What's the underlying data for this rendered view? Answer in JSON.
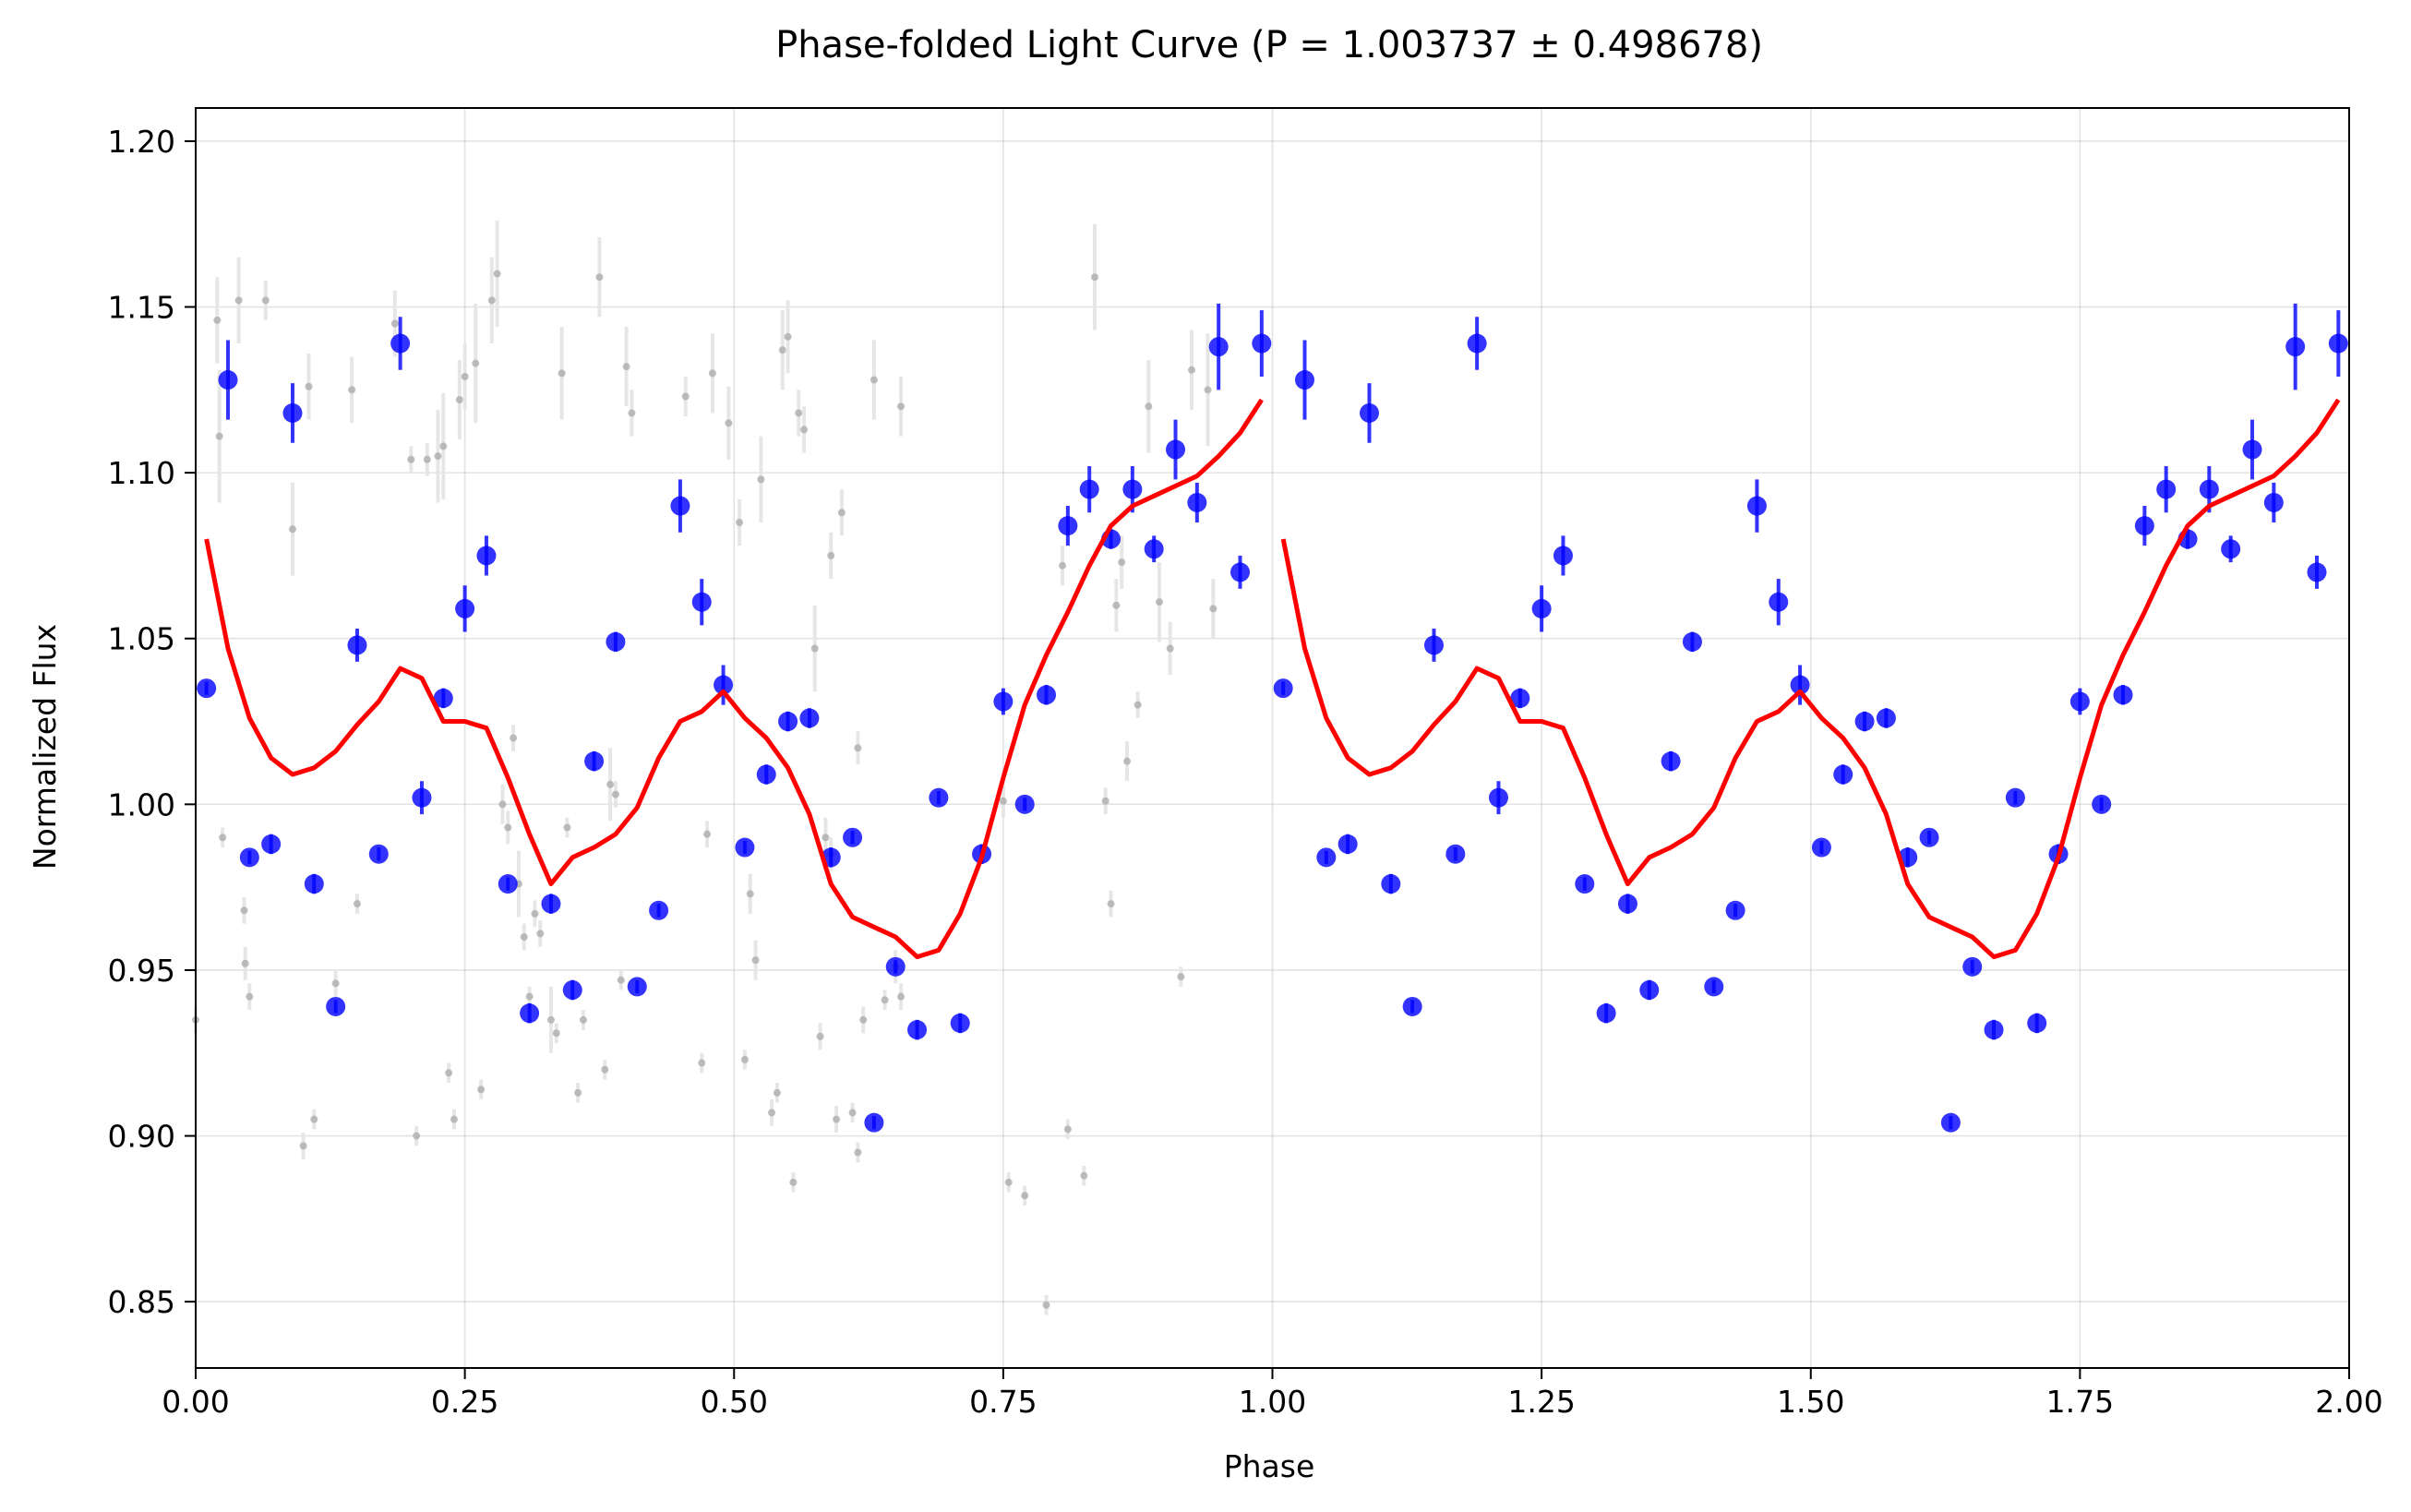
{
  "chart_data": {
    "type": "scatter",
    "title": "Phase-folded Light Curve (P = 1.003737 ± 0.498678)",
    "xlabel": "Phase",
    "ylabel": "Normalized Flux",
    "xlim": [
      0.0,
      2.0
    ],
    "ylim": [
      0.83,
      1.21
    ],
    "xticks": [
      0.0,
      0.25,
      0.5,
      0.75,
      1.0,
      1.25,
      1.5,
      1.75,
      2.0
    ],
    "xtick_labels": [
      "0.00",
      "0.25",
      "0.50",
      "0.75",
      "1.00",
      "1.25",
      "1.50",
      "1.75",
      "2.00"
    ],
    "yticks": [
      0.85,
      0.9,
      0.95,
      1.0,
      1.05,
      1.1,
      1.15,
      1.2
    ],
    "ytick_labels": [
      "0.85",
      "0.90",
      "0.95",
      "1.00",
      "1.05",
      "1.10",
      "1.15",
      "1.20"
    ],
    "grid": true,
    "legend": "none",
    "colors": {
      "raw": "#a8a8a8",
      "raw_err": "#e6e6e6",
      "binned": "#0000ff",
      "model": "#ff0000"
    },
    "series": [
      {
        "kind": "raw",
        "x": [
          0.0,
          0.02,
          0.022,
          0.025,
          0.04,
          0.045,
          0.046,
          0.05,
          0.065,
          0.09,
          0.1,
          0.105,
          0.11,
          0.13,
          0.145,
          0.15,
          0.185,
          0.2,
          0.205,
          0.215,
          0.225,
          0.23,
          0.235,
          0.24,
          0.245,
          0.25,
          0.26,
          0.265,
          0.275,
          0.28,
          0.285,
          0.29,
          0.295,
          0.3,
          0.305,
          0.31,
          0.315,
          0.32,
          0.33,
          0.335,
          0.34,
          0.345,
          0.355,
          0.36,
          0.375,
          0.38,
          0.385,
          0.39,
          0.395,
          0.4,
          0.405,
          0.455,
          0.47,
          0.475,
          0.48,
          0.495,
          0.505,
          0.51,
          0.515,
          0.52,
          0.525,
          0.535,
          0.54,
          0.545,
          0.55,
          0.555,
          0.56,
          0.565,
          0.575,
          0.58,
          0.585,
          0.59,
          0.59,
          0.595,
          0.6,
          0.61,
          0.615,
          0.615,
          0.62,
          0.63,
          0.64,
          0.65,
          0.655,
          0.655,
          0.75,
          0.755,
          0.77,
          0.79,
          0.805,
          0.81,
          0.825,
          0.835,
          0.845,
          0.85,
          0.855,
          0.86,
          0.865,
          0.875,
          0.885,
          0.895,
          0.905,
          0.915,
          0.925,
          0.94,
          0.945
        ],
        "y": [
          0.935,
          1.146,
          1.111,
          0.99,
          1.152,
          0.968,
          0.952,
          0.942,
          1.152,
          1.083,
          0.897,
          1.126,
          0.905,
          0.946,
          1.125,
          0.97,
          1.145,
          1.104,
          0.9,
          1.104,
          1.105,
          1.108,
          0.919,
          0.905,
          1.122,
          1.129,
          1.133,
          0.914,
          1.152,
          1.16,
          1.0,
          0.993,
          1.02,
          0.976,
          0.96,
          0.942,
          0.967,
          0.961,
          0.935,
          0.931,
          1.13,
          0.993,
          0.913,
          0.935,
          1.159,
          0.92,
          1.006,
          1.003,
          0.947,
          1.132,
          1.118,
          1.123,
          0.922,
          0.991,
          1.13,
          1.115,
          1.085,
          0.923,
          0.973,
          0.953,
          1.098,
          0.907,
          0.913,
          1.137,
          1.141,
          0.886,
          1.118,
          1.113,
          1.047,
          0.93,
          0.99,
          0.985,
          1.075,
          0.905,
          1.088,
          0.907,
          0.895,
          1.017,
          0.935,
          1.128,
          0.941,
          0.951,
          0.942,
          1.12,
          1.001,
          0.886,
          0.882,
          0.849,
          1.072,
          0.902,
          0.888,
          1.159,
          1.001,
          0.97,
          1.06,
          1.073,
          1.013,
          1.03,
          1.12,
          1.061,
          1.047,
          0.948,
          1.131,
          1.125,
          1.059
        ],
        "yerr": [
          0.004,
          0.013,
          0.02,
          0.003,
          0.013,
          0.004,
          0.005,
          0.004,
          0.006,
          0.014,
          0.004,
          0.01,
          0.003,
          0.004,
          0.01,
          0.003,
          0.01,
          0.004,
          0.003,
          0.005,
          0.014,
          0.016,
          0.003,
          0.003,
          0.012,
          0.01,
          0.018,
          0.003,
          0.013,
          0.016,
          0.006,
          0.005,
          0.004,
          0.01,
          0.004,
          0.003,
          0.004,
          0.004,
          0.01,
          0.003,
          0.014,
          0.003,
          0.003,
          0.003,
          0.012,
          0.003,
          0.011,
          0.004,
          0.003,
          0.012,
          0.007,
          0.006,
          0.003,
          0.004,
          0.012,
          0.011,
          0.007,
          0.003,
          0.006,
          0.006,
          0.013,
          0.004,
          0.003,
          0.012,
          0.011,
          0.003,
          0.007,
          0.007,
          0.013,
          0.004,
          0.006,
          0.005,
          0.007,
          0.004,
          0.007,
          0.003,
          0.003,
          0.005,
          0.004,
          0.012,
          0.003,
          0.005,
          0.004,
          0.009,
          0.005,
          0.003,
          0.003,
          0.003,
          0.006,
          0.003,
          0.003,
          0.016,
          0.004,
          0.004,
          0.008,
          0.008,
          0.006,
          0.004,
          0.014,
          0.012,
          0.008,
          0.003,
          0.012,
          0.017,
          0.009
        ]
      },
      {
        "kind": "binned",
        "x": [
          0.01,
          0.03,
          0.05,
          0.07,
          0.09,
          0.11,
          0.13,
          0.15,
          0.17,
          0.19,
          0.21,
          0.23,
          0.25,
          0.27,
          0.29,
          0.31,
          0.33,
          0.35,
          0.37,
          0.39,
          0.41,
          0.43,
          0.45,
          0.47,
          0.49,
          0.51,
          0.53,
          0.55,
          0.57,
          0.59,
          0.61,
          0.63,
          0.65,
          0.67,
          0.69,
          0.71,
          0.73,
          0.75,
          0.77,
          0.79,
          0.81,
          0.83,
          0.85,
          0.87,
          0.89,
          0.91,
          0.93,
          0.95,
          0.97,
          0.99
        ],
        "y": [
          1.035,
          1.128,
          0.984,
          0.988,
          1.118,
          0.976,
          0.939,
          1.048,
          0.985,
          1.139,
          1.002,
          1.032,
          1.059,
          1.075,
          0.976,
          0.937,
          0.97,
          0.944,
          1.013,
          1.049,
          0.945,
          0.968,
          1.09,
          1.061,
          1.036,
          0.987,
          1.009,
          1.025,
          1.026,
          0.984,
          0.99,
          0.904,
          0.951,
          0.932,
          1.002,
          0.934,
          0.985,
          1.031,
          1.0,
          1.033,
          1.084,
          1.095,
          1.08,
          1.095,
          1.077,
          1.107,
          1.091,
          1.138,
          1.07,
          1.139
        ],
        "yerr": [
          0.002,
          0.012,
          0.002,
          0.003,
          0.009,
          0.003,
          0.002,
          0.005,
          0.002,
          0.008,
          0.005,
          0.003,
          0.007,
          0.006,
          0.002,
          0.003,
          0.003,
          0.003,
          0.003,
          0.003,
          0.002,
          0.002,
          0.008,
          0.007,
          0.006,
          0.002,
          0.003,
          0.003,
          0.003,
          0.003,
          0.002,
          0.002,
          0.002,
          0.003,
          0.002,
          0.003,
          0.003,
          0.004,
          0.002,
          0.003,
          0.006,
          0.007,
          0.003,
          0.007,
          0.004,
          0.009,
          0.006,
          0.013,
          0.005,
          0.01
        ]
      },
      {
        "kind": "model",
        "x": [
          0.01,
          0.03,
          0.05,
          0.07,
          0.09,
          0.11,
          0.13,
          0.15,
          0.17,
          0.19,
          0.21,
          0.23,
          0.25,
          0.27,
          0.29,
          0.31,
          0.33,
          0.35,
          0.37,
          0.39,
          0.41,
          0.43,
          0.45,
          0.47,
          0.49,
          0.51,
          0.53,
          0.55,
          0.57,
          0.59,
          0.61,
          0.63,
          0.65,
          0.67,
          0.69,
          0.71,
          0.73,
          0.75,
          0.77,
          0.79,
          0.81,
          0.83,
          0.85,
          0.87,
          0.89,
          0.91,
          0.93,
          0.95,
          0.97,
          0.99
        ],
        "y": [
          1.08,
          1.047,
          1.026,
          1.014,
          1.009,
          1.011,
          1.016,
          1.024,
          1.031,
          1.041,
          1.038,
          1.025,
          1.025,
          1.023,
          1.008,
          0.991,
          0.976,
          0.984,
          0.987,
          0.991,
          0.999,
          1.014,
          1.025,
          1.028,
          1.034,
          1.026,
          1.02,
          1.011,
          0.997,
          0.976,
          0.966,
          0.963,
          0.96,
          0.954,
          0.956,
          0.967,
          0.984,
          1.008,
          1.03,
          1.045,
          1.058,
          1.072,
          1.084,
          1.09,
          1.093,
          1.096,
          1.099,
          1.105,
          1.112,
          1.122
        ]
      }
    ]
  }
}
